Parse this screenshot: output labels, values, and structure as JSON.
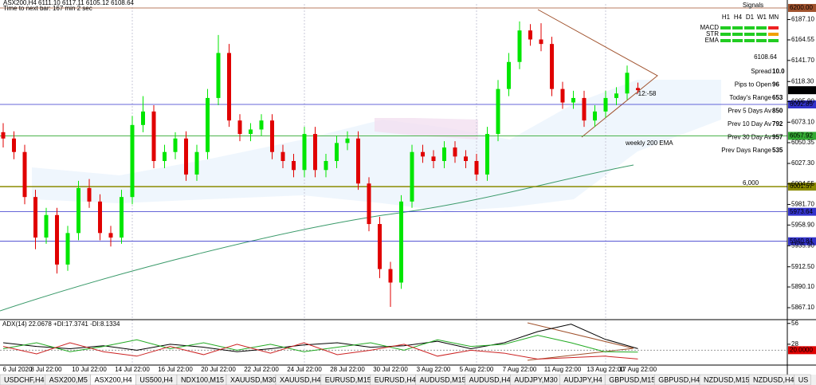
{
  "chart_data": {
    "type": "candlestick",
    "header": "ASX200,H4 6111.10 6117.11 6105.12 6108.64",
    "timer": "Time to next bar: 167 min 2 sec",
    "categories": [
      null,
      "6 Jul 2020",
      null,
      null,
      "8 Jul 22:00",
      null,
      null,
      null,
      "10 Jul 22:00",
      null,
      null,
      null,
      "14 Jul 22:00",
      null,
      null,
      null,
      "16 Jul 22:00",
      null,
      null,
      null,
      "20 Jul 22:00",
      null,
      null,
      null,
      "22 Jul 22:00",
      null,
      null,
      null,
      "24 Jul 22:00",
      null,
      null,
      null,
      "28 Jul 22:00",
      null,
      null,
      null,
      "30 Jul 22:00",
      null,
      null,
      null,
      "3 Aug 22:00",
      null,
      null,
      null,
      "5 Aug 22:00",
      null,
      null,
      null,
      "7 Aug 22:00",
      null,
      null,
      null,
      "11 Aug 22:00",
      null,
      null,
      null,
      "13 Aug 22:00",
      null,
      null,
      "17 Aug 22:00"
    ],
    "open": [
      6062,
      6055,
      6040,
      5990,
      5945,
      5970,
      5915,
      5950,
      6000,
      5985,
      5950,
      5945,
      5990,
      6070,
      6085,
      6030,
      6040,
      6055,
      6015,
      6040,
      6100,
      6150,
      6075,
      6060,
      6065,
      6075,
      6040,
      6030,
      6020,
      6060,
      6020,
      6030,
      6050,
      6055,
      6005,
      5960,
      5910,
      5895,
      5985,
      6040,
      6035,
      6030,
      6045,
      6035,
      6030,
      6015,
      6060,
      6110,
      6140,
      6175,
      6165,
      6160,
      6110,
      6095,
      6100,
      6075,
      6085,
      6100,
      6105,
      6111.1
    ],
    "high": [
      6072,
      6063,
      6048,
      5998,
      5978,
      5978,
      5958,
      6008,
      6010,
      5993,
      5958,
      5998,
      6080,
      6102,
      6092,
      6048,
      6062,
      6063,
      6048,
      6110,
      6170,
      6160,
      6082,
      6072,
      6082,
      6082,
      6048,
      6038,
      6068,
      6068,
      6038,
      6058,
      6063,
      6063,
      6012,
      5968,
      5918,
      5992,
      6048,
      6048,
      6042,
      6052,
      6052,
      6042,
      6038,
      6068,
      6120,
      6150,
      6185,
      6182,
      6183,
      6168,
      6118,
      6108,
      6108,
      6092,
      6108,
      6112,
      6136,
      6117.11
    ],
    "low": [
      6045,
      6032,
      5982,
      5932,
      5938,
      5905,
      5908,
      5942,
      5978,
      5942,
      5935,
      5938,
      5982,
      6062,
      6022,
      6022,
      6032,
      6008,
      6008,
      6032,
      6092,
      6068,
      6052,
      6052,
      6058,
      6032,
      6022,
      6012,
      6012,
      6012,
      6012,
      6022,
      6042,
      5998,
      5952,
      5900,
      5868,
      5888,
      5978,
      6028,
      6022,
      6022,
      6028,
      6022,
      6008,
      6008,
      6052,
      6102,
      6132,
      6158,
      6152,
      6102,
      6088,
      6088,
      6068,
      6068,
      6078,
      6092,
      6098,
      6105.12
    ],
    "close": [
      6055,
      6040,
      5990,
      5945,
      5970,
      5915,
      5950,
      6000,
      5985,
      5950,
      5945,
      5990,
      6070,
      6085,
      6030,
      6040,
      6055,
      6015,
      6040,
      6100,
      6150,
      6075,
      6060,
      6065,
      6075,
      6040,
      6030,
      6020,
      6060,
      6020,
      6030,
      6050,
      6055,
      6005,
      5960,
      5910,
      5895,
      5985,
      6040,
      6035,
      6030,
      6045,
      6035,
      6030,
      6015,
      6060,
      6110,
      6140,
      6175,
      6165,
      6160,
      6110,
      6095,
      6100,
      6075,
      6085,
      6100,
      6105,
      6128,
      6108.64
    ],
    "colors": {
      "up": "#00e600",
      "down": "#e00000"
    },
    "ylim": [
      5854.7,
      6204.4
    ],
    "yticks": [
      {
        "value": 6187.1,
        "label": "6187.10"
      },
      6164.55,
      {
        "value": 6141.7,
        "label": "6141.70"
      },
      {
        "value": 6118.3,
        "label": "6118.30"
      },
      {
        "value": 6095.9,
        "label": "6095.90"
      },
      {
        "value": 6073.1,
        "label": "6073.10"
      },
      6050.35,
      {
        "value": 6027.3,
        "label": "6027.30"
      },
      6004.55,
      {
        "value": 5981.7,
        "label": "5981.70"
      },
      {
        "value": 5958.9,
        "label": "5958.90"
      },
      {
        "value": 5935.9,
        "label": "5935.90"
      },
      {
        "value": 5912.5,
        "label": "5912.50"
      },
      {
        "value": 5890.1,
        "label": "5890.10"
      },
      {
        "value": 5867.1,
        "label": "5867.10"
      }
    ],
    "levels": [
      {
        "value": 6200,
        "label": "6200.00",
        "color": "#a0522d"
      },
      {
        "value": 6092.85,
        "label": "6092.85",
        "color": "#3333cc"
      },
      {
        "value": 6057.92,
        "label": "6057.92",
        "color": "#33aa33"
      },
      {
        "value": 6001.57,
        "label": "6001.57",
        "color": "#8b8b00"
      },
      {
        "value": 5973.64,
        "label": "5973.64",
        "color": "#3333cc"
      },
      {
        "value": 5940.84,
        "label": "5940.84",
        "color": "#3333cc"
      }
    ],
    "annotations": {
      "countdown": "-12:-58",
      "ema": "weekly 200 EMA",
      "round": "6,000"
    },
    "indicator": {
      "type": "line",
      "title": "ADX(14) 22.0678 +DI:17.3741 -DI:8.1334",
      "ylim": [
        0,
        60
      ],
      "yticks": [
        56,
        28
      ],
      "level": {
        "value": 20,
        "label": "20.0000"
      },
      "series": [
        {
          "color": "#000000",
          "values": [
            30,
            25,
            22,
            26,
            20,
            28,
            24,
            18,
            22,
            27,
            30,
            24,
            26,
            32,
            22,
            30,
            45,
            55,
            35,
            22.07
          ]
        },
        {
          "color": "#22aa22",
          "values": [
            22,
            30,
            18,
            25,
            34,
            22,
            30,
            20,
            28,
            18,
            24,
            30,
            20,
            34,
            25,
            28,
            40,
            30,
            18,
            17.37
          ]
        },
        {
          "color": "#cc2222",
          "values": [
            25,
            15,
            30,
            18,
            12,
            25,
            14,
            28,
            16,
            30,
            14,
            20,
            28,
            12,
            20,
            16,
            8,
            10,
            12,
            8.13
          ]
        }
      ]
    }
  },
  "panel": {
    "signals": {
      "title": "Signals",
      "columns": [
        "H1",
        "H4",
        "D1",
        "W1",
        "MN"
      ],
      "rows": [
        "MACD",
        "STR",
        "EMA"
      ]
    },
    "stats": [
      {
        "label": "Spread",
        "value": "10.0"
      },
      {
        "label": "Pips to Open",
        "value": "96"
      },
      {
        "label": "Today's Range",
        "value": "653"
      },
      {
        "label": "Prev 5 Days Av",
        "value": "850"
      },
      {
        "label": "Prev 10 Day Av",
        "value": "792"
      },
      {
        "label": "Prev 30 Day Av",
        "value": "957"
      },
      {
        "label": "Prev Days Range",
        "value": "535"
      }
    ]
  },
  "tabs": [
    "USDCHF,H4",
    "ASX200,M5",
    "ASX200,H4",
    "US500,H4",
    "NDX100,M15",
    "XAUUSD,M30",
    "XAUUSD,H4",
    "EURUSD,M15",
    "EURUSD,H4",
    "AUDUSD,M15",
    "AUDUSD,H4",
    "AUDJPY,M30",
    "AUDJPY,H4",
    "GBPUSD,M15",
    "GBPUSD,H4",
    "NZDUSD,M15",
    "NZDUSD,H4",
    "US"
  ]
}
